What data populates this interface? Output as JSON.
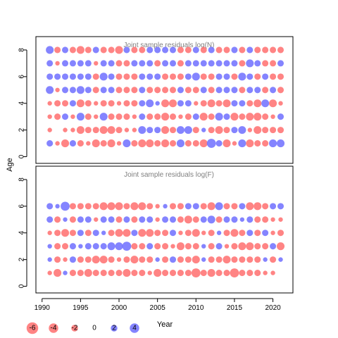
{
  "chart_data": {
    "type": "scatter",
    "xlabel": "Year",
    "ylabel": "Age",
    "xlim": [
      1989.2,
      2022.6
    ],
    "xticks": [
      1990,
      1995,
      2000,
      2005,
      2010,
      2015,
      2020
    ],
    "grid": false,
    "legend_placement": "bottom-left",
    "colors": {
      "negative": "#FF6F6F",
      "positive": "#6F6FFF"
    },
    "size_legend": {
      "values": [
        -6,
        -4,
        -2,
        0,
        2,
        4
      ],
      "labels": [
        "-6",
        "-4",
        "-2",
        "0",
        "2",
        "4"
      ]
    },
    "panels": [
      {
        "title": "Joint sample residuals log(N)",
        "ylim": [
          -0.5,
          9
        ],
        "yticks": [
          0,
          2,
          4,
          6,
          8
        ],
        "ages": [
          1,
          2,
          3,
          4,
          5,
          6,
          7,
          8
        ],
        "years": [
          1991,
          1992,
          1993,
          1994,
          1995,
          1996,
          1997,
          1998,
          1999,
          2000,
          2001,
          2002,
          2003,
          2004,
          2005,
          2006,
          2007,
          2008,
          2009,
          2010,
          2011,
          2012,
          2013,
          2014,
          2015,
          2016,
          2017,
          2018,
          2019,
          2020,
          2021
        ],
        "residuals": [
          [
            2,
            -1,
            -3,
            2,
            -2,
            -1,
            -3,
            -2,
            -3,
            -1,
            3,
            -2,
            -3,
            -3,
            -2,
            -3,
            -2,
            3,
            -2,
            -2,
            -3,
            4,
            2,
            -3,
            -1,
            3,
            -3,
            -2,
            -2,
            3,
            3
          ],
          [
            -1,
            0,
            -1,
            -1,
            -3,
            -2,
            -2,
            -3,
            -3,
            -2,
            -1,
            -1,
            3,
            2,
            2,
            -3,
            -2,
            3,
            3,
            -2,
            1,
            -2,
            -3,
            -2,
            2,
            3,
            -1,
            -3,
            -2,
            -2,
            -2
          ],
          [
            -1,
            -2,
            2,
            -1,
            3,
            -2,
            -1,
            3,
            -2,
            -2,
            -2,
            -1,
            2,
            -2,
            -2,
            -3,
            -2,
            -1,
            -2,
            2,
            -3,
            -2,
            3,
            2,
            -3,
            -2,
            -3,
            -3,
            -2,
            -1,
            2
          ],
          [
            -1,
            -2,
            -2,
            2,
            -3,
            -2,
            -1,
            -2,
            -2,
            -1,
            -2,
            -2,
            2,
            3,
            1,
            -3,
            -3,
            2,
            2,
            -1,
            -2,
            -3,
            -2,
            -3,
            2,
            2,
            -2,
            -3,
            3,
            -3,
            -1
          ],
          [
            3,
            -1,
            2,
            2,
            3,
            2,
            -2,
            2,
            2,
            -2,
            -2,
            -2,
            2,
            -2,
            -2,
            -2,
            -2,
            2,
            -2,
            -2,
            2,
            -2,
            2,
            2,
            2,
            -2,
            2,
            2,
            -2,
            2,
            -2
          ],
          [
            2,
            2,
            2,
            2,
            2,
            2,
            -2,
            3,
            2,
            -2,
            -2,
            -2,
            2,
            2,
            2,
            -2,
            -2,
            -2,
            2,
            3,
            -2,
            -2,
            2,
            2,
            -2,
            3,
            2,
            -2,
            2,
            -2,
            -2
          ],
          [
            2,
            -1,
            2,
            2,
            2,
            2,
            -1,
            2,
            2,
            -2,
            -2,
            2,
            2,
            2,
            -2,
            2,
            2,
            -2,
            2,
            2,
            2,
            2,
            2,
            2,
            2,
            -2,
            3,
            2,
            -2,
            -2,
            2
          ],
          [
            3,
            -2,
            2,
            -2,
            -3,
            -2,
            2,
            -2,
            -2,
            -3,
            2,
            -2,
            -2,
            2,
            2,
            2,
            2,
            -2,
            -2,
            2,
            -2,
            2,
            -2,
            -2,
            2,
            -2,
            2,
            -2,
            -2,
            -2,
            -2
          ]
        ]
      },
      {
        "title": "Joint sample residuals log(F)",
        "ylim": [
          -0.5,
          9
        ],
        "yticks": [
          0,
          2,
          4,
          6,
          8
        ],
        "ages": [
          1,
          2,
          3,
          4,
          5,
          6
        ],
        "years": [
          1991,
          1992,
          1993,
          1994,
          1995,
          1996,
          1997,
          1998,
          1999,
          2000,
          2001,
          2002,
          2003,
          2004,
          2005,
          2006,
          2007,
          2008,
          2009,
          2010,
          2011,
          2012,
          2013,
          2014,
          2015,
          2016,
          2017,
          2018,
          2019,
          2020,
          2021
        ],
        "residuals": [
          [
            -1,
            -3,
            1,
            -2,
            -2,
            -3,
            -2,
            -2,
            -2,
            -2,
            -3,
            -2,
            -2,
            -1,
            -3,
            -2,
            -2,
            -2,
            -2,
            -4,
            -2,
            -3,
            -2,
            -2,
            -4,
            -2,
            -2,
            -2,
            -1,
            -1,
            0
          ],
          [
            1,
            -2,
            -1,
            2,
            -2,
            -2,
            -3,
            -3,
            -2,
            -1,
            -2,
            -3,
            -2,
            -2,
            1,
            -2,
            2,
            -2,
            -2,
            -3,
            1,
            -2,
            -2,
            -3,
            -2,
            -2,
            -2,
            -2,
            1,
            -2,
            1
          ],
          [
            1,
            -2,
            -2,
            2,
            1,
            2,
            2,
            2,
            3,
            3,
            4,
            -2,
            -2,
            2,
            -2,
            -2,
            -1,
            -3,
            -2,
            -2,
            1,
            -2,
            2,
            -1,
            -2,
            -3,
            -3,
            -2,
            -2,
            2,
            -3
          ],
          [
            -1,
            -2,
            -3,
            -2,
            2,
            -2,
            2,
            1,
            -2,
            -3,
            -3,
            2,
            -3,
            -3,
            -2,
            -2,
            2,
            -1,
            -2,
            -3,
            -1,
            -2,
            1,
            -2,
            -3,
            -2,
            2,
            -2,
            2,
            -1,
            -2
          ],
          [
            2,
            -2,
            1,
            -2,
            2,
            2,
            -1,
            2,
            2,
            -2,
            2,
            -2,
            2,
            2,
            -1,
            2,
            2,
            -2,
            -3,
            -2,
            2,
            3,
            -2,
            2,
            2,
            1,
            2,
            -2,
            -2,
            -1,
            -1
          ],
          [
            2,
            1,
            4,
            -2,
            -2,
            -2,
            -2,
            -3,
            -3,
            -3,
            -2,
            -3,
            -3,
            -2,
            -1,
            1,
            -2,
            -2,
            2,
            2,
            -2,
            -3,
            3,
            -2,
            -2,
            2,
            -3,
            -3,
            -2,
            2,
            2
          ]
        ]
      }
    ]
  }
}
